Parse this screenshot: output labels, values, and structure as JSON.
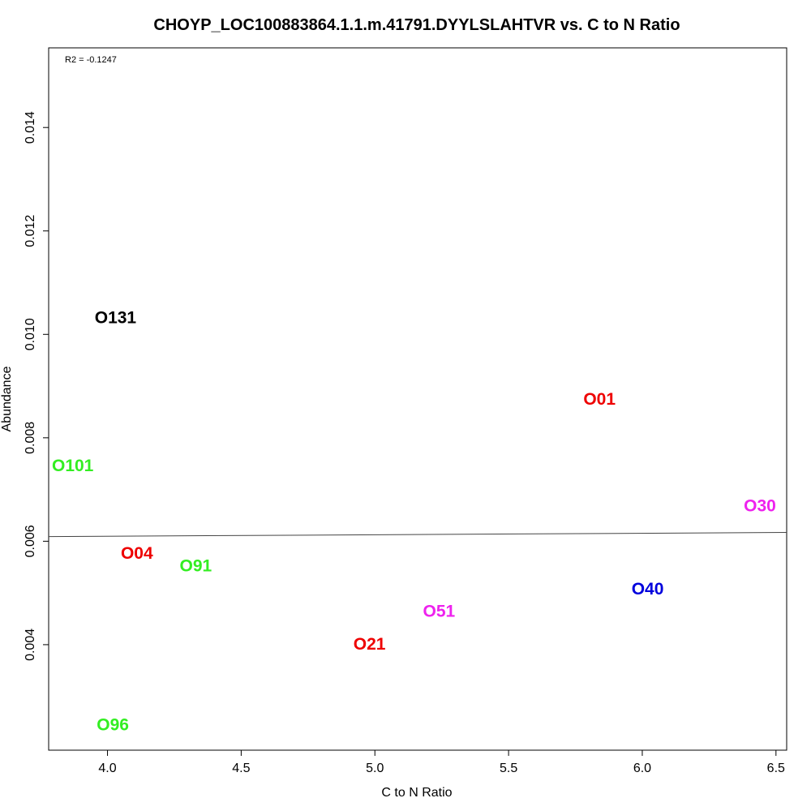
{
  "chart_data": {
    "type": "scatter",
    "title": "CHOYP_LOC100883864.1.1.m.41791.DYYLSLAHTVR vs. C to N Ratio",
    "xlabel": "C to N Ratio",
    "ylabel": "Abundance",
    "xlim": [
      3.78,
      6.54
    ],
    "ylim": [
      0.00196,
      0.01554
    ],
    "xticks": [
      4.0,
      4.5,
      5.0,
      5.5,
      6.0,
      6.5
    ],
    "xtick_labels": [
      "4.0",
      "4.5",
      "5.0",
      "5.5",
      "6.0",
      "6.5"
    ],
    "yticks": [
      0.004,
      0.006,
      0.008,
      0.01,
      0.012,
      0.014
    ],
    "ytick_labels": [
      "0.004",
      "0.006",
      "0.008",
      "0.010",
      "0.012",
      "0.014"
    ],
    "annotation": "R2 = -0.1247",
    "grid": false,
    "points": [
      {
        "label": "O131",
        "x": 4.03,
        "y": 0.01032,
        "color": "#000000"
      },
      {
        "label": "O01",
        "x": 5.84,
        "y": 0.00874,
        "color": "#ee0000"
      },
      {
        "label": "O101",
        "x": 3.87,
        "y": 0.00746,
        "color": "#33ee22"
      },
      {
        "label": "O30",
        "x": 6.44,
        "y": 0.00668,
        "color": "#ee22ee"
      },
      {
        "label": "O04",
        "x": 4.11,
        "y": 0.00576,
        "color": "#ee0000"
      },
      {
        "label": "O91",
        "x": 4.33,
        "y": 0.00552,
        "color": "#33ee22"
      },
      {
        "label": "O40",
        "x": 6.02,
        "y": 0.00507,
        "color": "#0000dd"
      },
      {
        "label": "O51",
        "x": 5.24,
        "y": 0.00464,
        "color": "#ee22ee"
      },
      {
        "label": "O21",
        "x": 4.98,
        "y": 0.00401,
        "color": "#ee0000"
      },
      {
        "label": "O96",
        "x": 4.02,
        "y": 0.00245,
        "color": "#33ee22"
      }
    ],
    "regression_line": {
      "x": [
        3.78,
        6.54
      ],
      "y": [
        0.00609,
        0.00617
      ],
      "color": "#444444"
    }
  }
}
